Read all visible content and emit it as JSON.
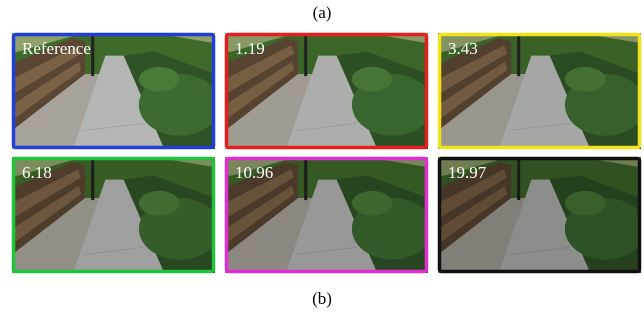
{
  "caption_a": "(a)",
  "caption_b": "(b)",
  "panels": [
    {
      "label": "Reference",
      "color": "#1f3fd6"
    },
    {
      "label": "1.19",
      "color": "#e61e1e"
    },
    {
      "label": "3.43",
      "color": "#f2e21c"
    },
    {
      "label": "6.18",
      "color": "#1fc43a"
    },
    {
      "label": "10.96",
      "color": "#e02ed2"
    },
    {
      "label": "19.97",
      "color": "#111111"
    }
  ]
}
